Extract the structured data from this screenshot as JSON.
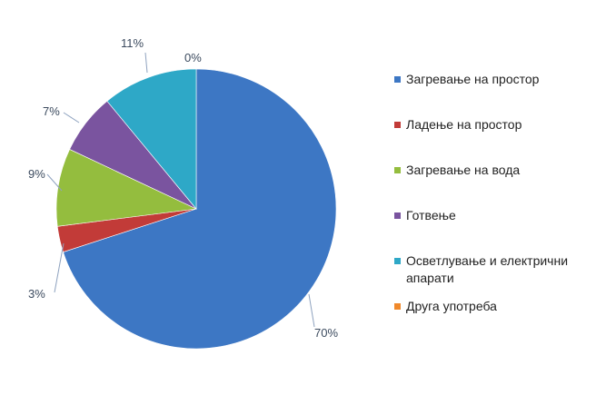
{
  "chart_data": {
    "type": "pie",
    "title": "",
    "categories": [
      "Загревање на простор",
      "Ладење на простор",
      "Загревање на вода",
      "Готвење",
      "Осветлување и електрични апарати",
      "Друга употреба"
    ],
    "values": [
      70,
      3,
      9,
      7,
      11,
      0
    ],
    "data_labels": [
      "70%",
      "3%",
      "9%",
      "7%",
      "11%",
      "0%"
    ],
    "colors": [
      "#3d77c4",
      "#c23b38",
      "#94bd3e",
      "#7a549f",
      "#2ea8c7",
      "#f0892b"
    ],
    "legend_position": "right"
  }
}
